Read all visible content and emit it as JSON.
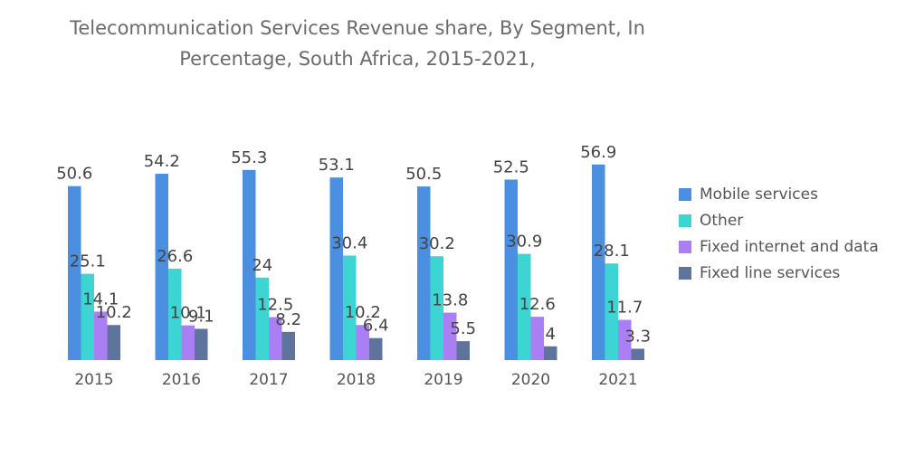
{
  "title": {
    "line1": "Telecommunication Services Revenue share, By Segment, In",
    "line2": "Percentage, South Africa, 2015-2021,"
  },
  "chart_data": {
    "type": "bar",
    "title": "Telecommunication Services Revenue share, By Segment, In Percentage, South Africa, 2015-2021,",
    "categories": [
      "2015",
      "2016",
      "2017",
      "2018",
      "2019",
      "2020",
      "2021"
    ],
    "series": [
      {
        "name": "Mobile services",
        "color": "#4a8fe0",
        "values": [
          50.6,
          54.2,
          55.3,
          53.1,
          50.5,
          52.5,
          56.9
        ]
      },
      {
        "name": "Other",
        "color": "#3dd4d4",
        "values": [
          25.1,
          26.6,
          24,
          30.4,
          30.2,
          30.9,
          28.1
        ]
      },
      {
        "name": "Fixed internet and data",
        "color": "#a97ff3",
        "values": [
          14.1,
          10.1,
          12.5,
          10.2,
          13.8,
          12.6,
          11.7
        ]
      },
      {
        "name": "Fixed line services",
        "color": "#5e749c",
        "values": [
          10.2,
          9.1,
          8.2,
          6.4,
          5.5,
          4,
          3.3
        ]
      }
    ],
    "xlabel": "",
    "ylabel": "",
    "ylim": [
      0,
      60
    ],
    "grid": false,
    "legend": "right"
  }
}
